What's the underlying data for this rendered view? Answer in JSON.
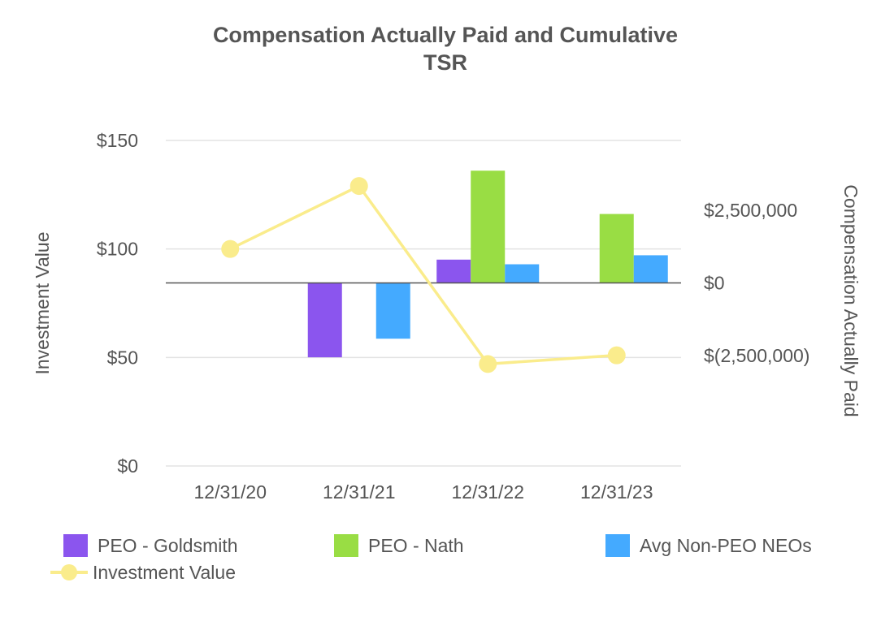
{
  "chart_data": {
    "type": "bar",
    "title": "Compensation Actually Paid and Cumulative TSR",
    "title_lines": [
      "Compensation Actually Paid and Cumulative",
      "TSR"
    ],
    "categories": [
      "12/31/20",
      "12/31/21",
      "12/31/22",
      "12/31/23"
    ],
    "ylabel": "Investment Value",
    "y2label": "Compensation Actually Paid",
    "ylim": [
      0,
      150
    ],
    "y2lim": [
      -6300000,
      4900000
    ],
    "yticks": [
      0,
      50,
      100,
      150
    ],
    "ytick_labels": [
      "$0",
      "$50",
      "$100",
      "$150"
    ],
    "y2ticks": [
      -2500000,
      0,
      2500000
    ],
    "y2tick_labels": [
      "$(2,500,000)",
      "$0",
      "$2,500,000"
    ],
    "grid": true,
    "series": [
      {
        "name": "PEO - Goldsmith",
        "type": "bar",
        "axis": "right",
        "color": "#8b55ee",
        "values": [
          null,
          -2560000,
          800000,
          null
        ]
      },
      {
        "name": "PEO - Nath",
        "type": "bar",
        "axis": "right",
        "color": "#99dd44",
        "values": [
          null,
          null,
          3860000,
          2370000
        ]
      },
      {
        "name": "Avg Non-PEO NEOs",
        "type": "bar",
        "axis": "right",
        "color": "#44aaff",
        "values": [
          null,
          -1920000,
          640000,
          950000
        ]
      },
      {
        "name": "Investment Value",
        "type": "line",
        "axis": "left",
        "color": "#faec8c",
        "values": [
          100,
          129,
          47,
          51
        ]
      }
    ]
  }
}
